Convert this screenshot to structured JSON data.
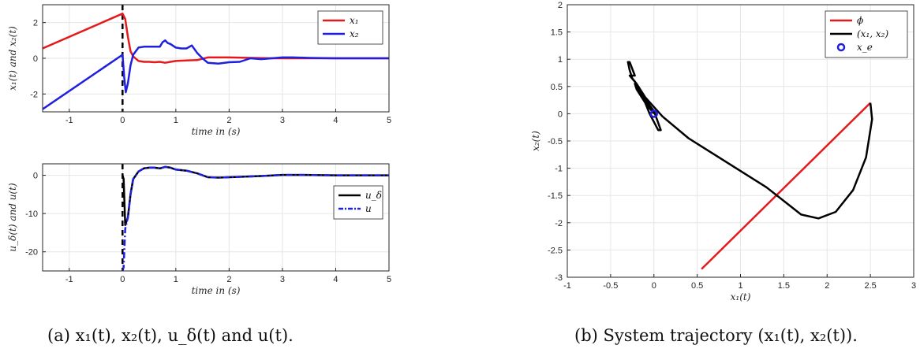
{
  "captions": {
    "a": "(a) x₁(t), x₂(t), u_δ(t) and u(t).",
    "b": "(b) System trajectory (x₁(t), x₂(t))."
  },
  "colors": {
    "red": "#e41a1c",
    "blue": "#1f1fe0",
    "black": "#000000"
  },
  "chart_data": [
    {
      "type": "line",
      "xlabel": "time in (s)",
      "ylabel": "x₁(t) and x₂(t)",
      "xlim": [
        -1.5,
        5
      ],
      "ylim": [
        -3,
        3
      ],
      "xticks": [
        -1,
        0,
        1,
        2,
        3,
        4,
        5
      ],
      "yticks": [
        -2,
        0,
        2
      ],
      "grid": true,
      "legend": "top-right",
      "vline_x": 0,
      "series": [
        {
          "name": "x₁",
          "color": "#e41a1c",
          "x": [
            -1.5,
            0,
            0.05,
            0.1,
            0.15,
            0.2,
            0.3,
            0.4,
            0.5,
            0.6,
            0.7,
            0.8,
            0.9,
            1.0,
            1.2,
            1.4,
            1.6,
            2.0,
            2.4,
            2.8,
            3.2,
            4.0,
            5.0
          ],
          "y": [
            0.55,
            2.5,
            2.2,
            1.2,
            0.4,
            0.1,
            -0.15,
            -0.2,
            -0.2,
            -0.22,
            -0.2,
            -0.25,
            -0.2,
            -0.15,
            -0.12,
            -0.1,
            0.05,
            0.05,
            0.02,
            0.0,
            0.0,
            0.0,
            0.0
          ]
        },
        {
          "name": "x₂",
          "color": "#1f1fe0",
          "x": [
            -1.5,
            0,
            0.03,
            0.06,
            0.1,
            0.15,
            0.2,
            0.3,
            0.4,
            0.5,
            0.6,
            0.7,
            0.75,
            0.8,
            0.85,
            0.9,
            1.0,
            1.1,
            1.2,
            1.3,
            1.4,
            1.5,
            1.6,
            1.8,
            2.0,
            2.2,
            2.4,
            2.6,
            2.8,
            3.0,
            3.2,
            3.5,
            4.0,
            5.0
          ],
          "y": [
            -2.85,
            0.2,
            -1.0,
            -1.9,
            -1.4,
            -0.4,
            0.2,
            0.6,
            0.65,
            0.65,
            0.65,
            0.65,
            0.9,
            1.0,
            0.85,
            0.8,
            0.6,
            0.55,
            0.55,
            0.72,
            0.3,
            0.0,
            -0.25,
            -0.3,
            -0.22,
            -0.2,
            0.0,
            -0.05,
            0.0,
            0.05,
            0.05,
            0.02,
            0.0,
            0.0
          ]
        }
      ]
    },
    {
      "type": "line",
      "xlabel": "time in (s)",
      "ylabel": "u_δ(t) and u(t)",
      "xlim": [
        -1.5,
        5
      ],
      "ylim": [
        -25,
        3
      ],
      "xticks": [
        -1,
        0,
        1,
        2,
        3,
        4,
        5
      ],
      "yticks": [
        -20,
        -10,
        0
      ],
      "grid": true,
      "legend": "right",
      "vline_x": 0,
      "series": [
        {
          "name": "u_δ",
          "color": "#000000",
          "style": "solid",
          "x": [
            0,
            0.02,
            0.05,
            0.1,
            0.15,
            0.2,
            0.3,
            0.4,
            0.5,
            0.6,
            0.7,
            0.8,
            0.9,
            1.0,
            1.2,
            1.4,
            1.6,
            1.8,
            2.2,
            2.6,
            3.0,
            3.4,
            4.0,
            5.0
          ],
          "y": [
            0,
            -1.0,
            -13.0,
            -11.0,
            -5.0,
            -1.0,
            1.0,
            1.8,
            2.0,
            2.0,
            1.8,
            2.2,
            2.0,
            1.5,
            1.2,
            0.5,
            -0.5,
            -0.6,
            -0.4,
            -0.2,
            0.1,
            0.1,
            0.0,
            0.0
          ]
        },
        {
          "name": "u",
          "color": "#1f1fe0",
          "style": "dashdot",
          "x": [
            0,
            0.02,
            0.05,
            0.1,
            0.15,
            0.2,
            0.3,
            0.4,
            0.5,
            0.6,
            0.7,
            0.8,
            0.9,
            1.0,
            1.2,
            1.4,
            1.6,
            1.8,
            2.2,
            2.6,
            3.0,
            3.4,
            4.0,
            5.0
          ],
          "y": [
            -25,
            -24.0,
            -14.0,
            -11.0,
            -5.0,
            -1.0,
            1.0,
            1.8,
            2.0,
            2.0,
            1.8,
            2.2,
            2.0,
            1.5,
            1.2,
            0.5,
            -0.5,
            -0.6,
            -0.4,
            -0.2,
            0.1,
            0.1,
            0.0,
            0.0
          ]
        }
      ]
    },
    {
      "type": "line",
      "xlabel": "x₁(t)",
      "ylabel": "x₂(t)",
      "xlim": [
        -1,
        3
      ],
      "ylim": [
        -3,
        2
      ],
      "xticks": [
        -1,
        -0.5,
        0,
        0.5,
        1,
        1.5,
        2,
        2.5,
        3
      ],
      "yticks": [
        -3,
        -2.5,
        -2,
        -1.5,
        -1,
        -0.5,
        0,
        0.5,
        1,
        1.5,
        2
      ],
      "grid": true,
      "legend": "top-right",
      "series": [
        {
          "name": "ϕ",
          "color": "#e41a1c",
          "x": [
            0.55,
            2.5
          ],
          "y": [
            -2.85,
            0.2
          ]
        },
        {
          "name": "(x₁, x₂)",
          "color": "#000000",
          "x": [
            2.5,
            2.52,
            2.45,
            2.3,
            2.1,
            1.9,
            1.7,
            1.5,
            1.3,
            1.0,
            0.7,
            0.4,
            0.1,
            -0.1,
            -0.2,
            -0.25,
            -0.28,
            -0.3,
            -0.28,
            -0.22,
            -0.28,
            -0.2,
            -0.12,
            0.0,
            0.08,
            0.05,
            0.0,
            -0.05,
            -0.1,
            -0.2,
            -0.22,
            -0.1,
            0.0
          ],
          "y": [
            0.2,
            -0.1,
            -0.8,
            -1.4,
            -1.8,
            -1.92,
            -1.85,
            -1.6,
            -1.35,
            -1.05,
            -0.75,
            -0.45,
            -0.05,
            0.3,
            0.55,
            0.65,
            0.8,
            0.95,
            0.95,
            0.7,
            0.7,
            0.55,
            0.3,
            0.05,
            -0.3,
            -0.3,
            -0.15,
            0.0,
            0.2,
            0.45,
            0.55,
            0.2,
            0.0
          ]
        }
      ],
      "points": [
        {
          "name": "x_e",
          "color": "#1f1fe0",
          "x": 0,
          "y": 0,
          "marker": "circle"
        }
      ]
    }
  ]
}
